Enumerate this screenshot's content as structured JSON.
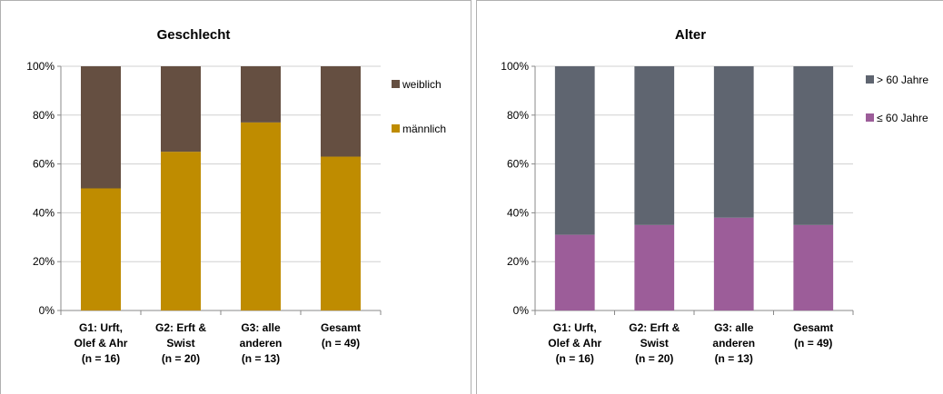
{
  "chart_data": [
    {
      "type": "bar",
      "stacked": true,
      "title": "Geschlecht",
      "categories": [
        [
          "G1: Urft,",
          "Olef & Ahr",
          "(n = 16)"
        ],
        [
          "G2: Erft &",
          "Swist",
          "(n = 20)"
        ],
        [
          "G3: alle",
          "anderen",
          "(n = 13)"
        ],
        [
          "Gesamt",
          "(n = 49)"
        ]
      ],
      "series": [
        {
          "name": "männlich",
          "values": [
            50,
            65,
            77,
            63
          ],
          "color": "#bf8c00"
        },
        {
          "name": "weiblich",
          "values": [
            50,
            35,
            23,
            37
          ],
          "color": "#654f41"
        }
      ],
      "ylim": [
        0,
        100
      ],
      "yticks": [
        "0%",
        "20%",
        "40%",
        "60%",
        "80%",
        "100%"
      ],
      "grid": true,
      "legend_position": "right"
    },
    {
      "type": "bar",
      "stacked": true,
      "title": "Alter",
      "categories": [
        [
          "G1: Urft,",
          "Olef & Ahr",
          "(n = 16)"
        ],
        [
          "G2: Erft &",
          "Swist",
          "(n = 20)"
        ],
        [
          "G3: alle",
          "anderen",
          "(n = 13)"
        ],
        [
          "Gesamt",
          "(n = 49)"
        ]
      ],
      "series": [
        {
          "name": "≤ 60 Jahre",
          "values": [
            31,
            35,
            38,
            35
          ],
          "color": "#9c5d99"
        },
        {
          "name": "> 60 Jahre",
          "values": [
            69,
            65,
            62,
            65
          ],
          "color": "#5f6570"
        }
      ],
      "ylim": [
        0,
        100
      ],
      "yticks": [
        "0%",
        "20%",
        "40%",
        "60%",
        "80%",
        "100%"
      ],
      "grid": true,
      "legend_position": "right"
    }
  ]
}
